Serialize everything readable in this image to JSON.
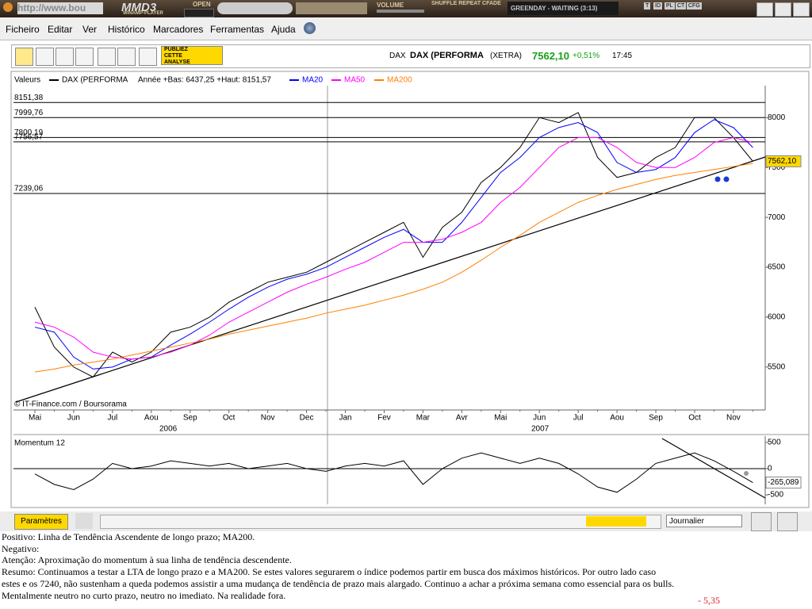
{
  "browser": {
    "address": "http://www.bou",
    "player": {
      "logo": "MMD3",
      "subtitle": "WINAMP-PLAYER",
      "open": "OPEN",
      "volume": "VOLUME",
      "modes": "SHUFFLE REPEAT CFADE",
      "track": "GREENDAY - WAITING (3:13)",
      "buttons": [
        "T",
        "ID",
        "PL",
        "CT",
        "CFG"
      ]
    },
    "menu": [
      "Ficheiro",
      "Editar",
      "Ver",
      "Histórico",
      "Marcadores",
      "Ferramentas",
      "Ajuda"
    ]
  },
  "toolbar": {
    "publish": [
      "PUBLIEZ",
      "CETTE",
      "ANALYSE"
    ],
    "symbol": "DAX",
    "name": "DAX (PERFORMA",
    "market": "(XETRA)",
    "price": "7562,10",
    "change": "+0,51%",
    "time": "17:45"
  },
  "chart_data": [
    {
      "type": "line",
      "header": "Valeurs",
      "range_text": "Année +Bas: 6437,25 +Haut: 8151,57",
      "source": "© IT-Finance.com / Boursorama",
      "categories": [
        "Mai",
        null,
        "Jun",
        null,
        "Jul",
        null,
        "Aou",
        null,
        "Sep",
        null,
        "Oct",
        null,
        "Nov",
        null,
        "Dec",
        null,
        "Jan",
        null,
        "Fev",
        null,
        "Mar",
        null,
        "Avr",
        null,
        "Mai",
        null,
        "Jun",
        null,
        "Jul",
        null,
        "Aou",
        null,
        "Sep",
        null,
        "Oct",
        null,
        "Nov",
        null
      ],
      "years": [
        "2006",
        "2007"
      ],
      "series": [
        {
          "name": "DAX (PERFORMA",
          "color": "#000000",
          "values": [
            6100,
            5700,
            5500,
            5400,
            5650,
            5550,
            5650,
            5850,
            5900,
            6000,
            6150,
            6250,
            6350,
            6400,
            6450,
            6550,
            6650,
            6750,
            6850,
            6950,
            6600,
            6900,
            7050,
            7350,
            7500,
            7700,
            8000,
            7950,
            8050,
            7600,
            7400,
            7450,
            7600,
            7700,
            8000,
            8000,
            7800,
            7562.1
          ]
        },
        {
          "name": "MA20",
          "color": "#0000ff",
          "values": [
            5900,
            5850,
            5600,
            5480,
            5500,
            5580,
            5600,
            5720,
            5830,
            5950,
            6080,
            6200,
            6300,
            6380,
            6430,
            6500,
            6600,
            6700,
            6800,
            6880,
            6750,
            6750,
            6950,
            7200,
            7450,
            7600,
            7800,
            7900,
            7950,
            7850,
            7550,
            7450,
            7480,
            7600,
            7850,
            7980,
            7900,
            7700
          ]
        },
        {
          "name": "MA50",
          "color": "#ff00ff",
          "values": [
            5950,
            5900,
            5800,
            5650,
            5600,
            5580,
            5600,
            5650,
            5720,
            5820,
            5950,
            6050,
            6150,
            6250,
            6330,
            6400,
            6480,
            6550,
            6650,
            6750,
            6750,
            6780,
            6850,
            6950,
            7150,
            7300,
            7500,
            7700,
            7800,
            7800,
            7700,
            7550,
            7500,
            7500,
            7600,
            7750,
            7800,
            7750
          ]
        },
        {
          "name": "MA200",
          "color": "#ff7f00",
          "values": [
            5450,
            5480,
            5520,
            5550,
            5580,
            5620,
            5660,
            5700,
            5740,
            5780,
            5830,
            5870,
            5910,
            5950,
            5990,
            6040,
            6080,
            6120,
            6170,
            6220,
            6280,
            6350,
            6450,
            6570,
            6700,
            6820,
            6950,
            7050,
            7150,
            7220,
            7280,
            7330,
            7380,
            7420,
            7450,
            7480,
            7510,
            7540
          ]
        }
      ],
      "ylim": [
        5070,
        8320
      ],
      "yticks": [
        5500,
        6000,
        6500,
        7000,
        7500,
        8000
      ],
      "levels": [
        {
          "value": 8151.38,
          "label": "8151,38"
        },
        {
          "value": 7999.76,
          "label": "7999,76"
        },
        {
          "value": 7800.19,
          "label": "7800,19"
        },
        {
          "value": 7756.57,
          "label": "7756,57"
        },
        {
          "value": 7239.06,
          "label": "7239,06"
        }
      ],
      "last": {
        "value": 7562.1,
        "label": "7562,10"
      }
    },
    {
      "type": "line",
      "title": "Momentum 12",
      "color": "#000000",
      "values": [
        -100,
        -300,
        -400,
        -200,
        100,
        0,
        50,
        150,
        100,
        50,
        100,
        0,
        50,
        100,
        0,
        -50,
        50,
        100,
        50,
        150,
        -300,
        0,
        200,
        300,
        200,
        100,
        200,
        100,
        -100,
        -350,
        -450,
        -200,
        100,
        200,
        300,
        150,
        -50,
        -265.089
      ],
      "ylim": [
        -680,
        620
      ],
      "yticks": [
        -500,
        0,
        500
      ],
      "last": {
        "value": -265.089,
        "label": "-265,089"
      }
    }
  ],
  "controls": {
    "settings": "Paramètres",
    "period": "Journalier"
  },
  "commentary": {
    "lines": [
      "Positivo: Linha de Tendência Ascendente de longo prazo; MA200.",
      "Negativo:",
      "Atenção: Aproximação do momentum à sua linha de tendência descendente.",
      "Resumo: Continuamos a testar a LTA de longo prazo e a MA200. Se estes valores segurarem o índice podemos partir em busca dos máximos históricos. Por outro lado caso",
      "estes e os 7240, não sustenham a queda podemos assistir a uma mudança de tendência de prazo mais alargado. Continuo a achar a próxima semana como essencial para os bulls.",
      "Mentalmente neutro no curto prazo, neutro no imediato. Na realidade fora."
    ],
    "score": "- 5,35"
  }
}
